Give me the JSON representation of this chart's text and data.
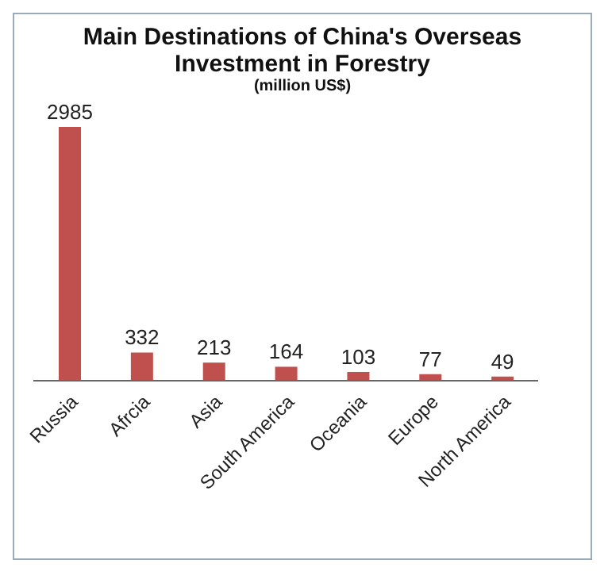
{
  "chart_data": {
    "type": "bar",
    "title": "Main Destinations of China's Overseas Investment in Forestry",
    "subtitle": "(million US$)",
    "categories": [
      "Russia",
      "Afrcia",
      "Asia",
      "South America",
      "Oceania",
      "Europe",
      "North America"
    ],
    "values": [
      2985,
      332,
      213,
      164,
      103,
      77,
      49
    ],
    "color": "#c0504d",
    "data_labels": true
  }
}
